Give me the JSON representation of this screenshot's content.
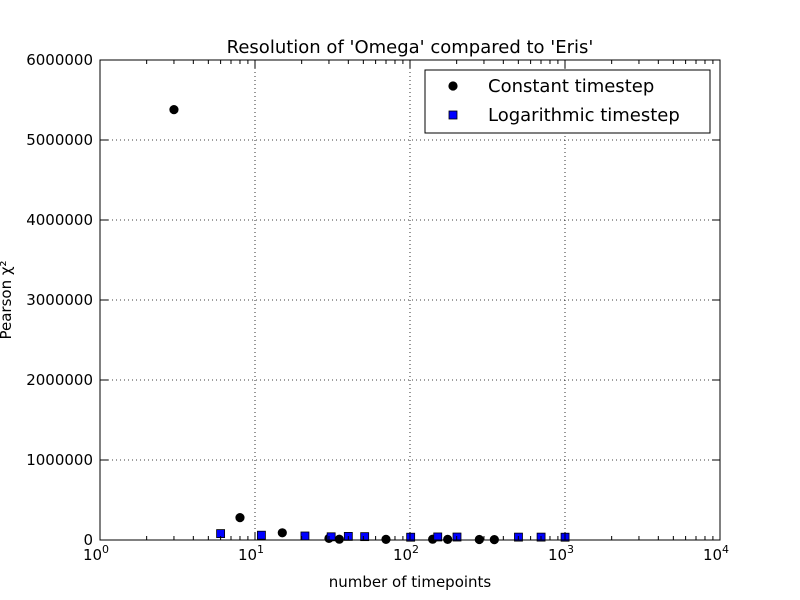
{
  "chart_data": {
    "type": "scatter",
    "title": "Resolution of 'Omega' compared to 'Eris'",
    "xlabel": "number of timepoints",
    "ylabel": "Pearson χ²",
    "x_scale": "log",
    "xlim": [
      1,
      10000
    ],
    "ylim": [
      0,
      6000000
    ],
    "x_ticks": [
      {
        "value": 1,
        "base": "10",
        "exp": "0"
      },
      {
        "value": 10,
        "base": "10",
        "exp": "1"
      },
      {
        "value": 100,
        "base": "10",
        "exp": "2"
      },
      {
        "value": 1000,
        "base": "10",
        "exp": "3"
      },
      {
        "value": 10000,
        "base": "10",
        "exp": "4"
      }
    ],
    "y_ticks": [
      {
        "value": 0,
        "label": "0"
      },
      {
        "value": 1000000,
        "label": "1000000"
      },
      {
        "value": 2000000,
        "label": "2000000"
      },
      {
        "value": 3000000,
        "label": "3000000"
      },
      {
        "value": 4000000,
        "label": "4000000"
      },
      {
        "value": 5000000,
        "label": "5000000"
      },
      {
        "value": 6000000,
        "label": "6000000"
      }
    ],
    "grid": true,
    "legend_position": "top-right",
    "series": [
      {
        "name": "Constant timestep",
        "marker": "circle",
        "color": "#000000",
        "points": [
          {
            "x": 3,
            "y": 5380000
          },
          {
            "x": 8,
            "y": 280000
          },
          {
            "x": 15,
            "y": 90000
          },
          {
            "x": 30,
            "y": 20000
          },
          {
            "x": 35,
            "y": 10000
          },
          {
            "x": 70,
            "y": 8000
          },
          {
            "x": 140,
            "y": 10000
          },
          {
            "x": 175,
            "y": 8000
          },
          {
            "x": 280,
            "y": 6000
          },
          {
            "x": 350,
            "y": 5000
          }
        ]
      },
      {
        "name": "Logarithmic timestep",
        "marker": "square",
        "color": "#0000ff",
        "points": [
          {
            "x": 6,
            "y": 80000
          },
          {
            "x": 11,
            "y": 60000
          },
          {
            "x": 21,
            "y": 50000
          },
          {
            "x": 31,
            "y": 40000
          },
          {
            "x": 40,
            "y": 45000
          },
          {
            "x": 51,
            "y": 42000
          },
          {
            "x": 101,
            "y": 35000
          },
          {
            "x": 151,
            "y": 38000
          },
          {
            "x": 201,
            "y": 37000
          },
          {
            "x": 501,
            "y": 36000
          },
          {
            "x": 701,
            "y": 36000
          },
          {
            "x": 1001,
            "y": 35000
          }
        ]
      }
    ]
  }
}
